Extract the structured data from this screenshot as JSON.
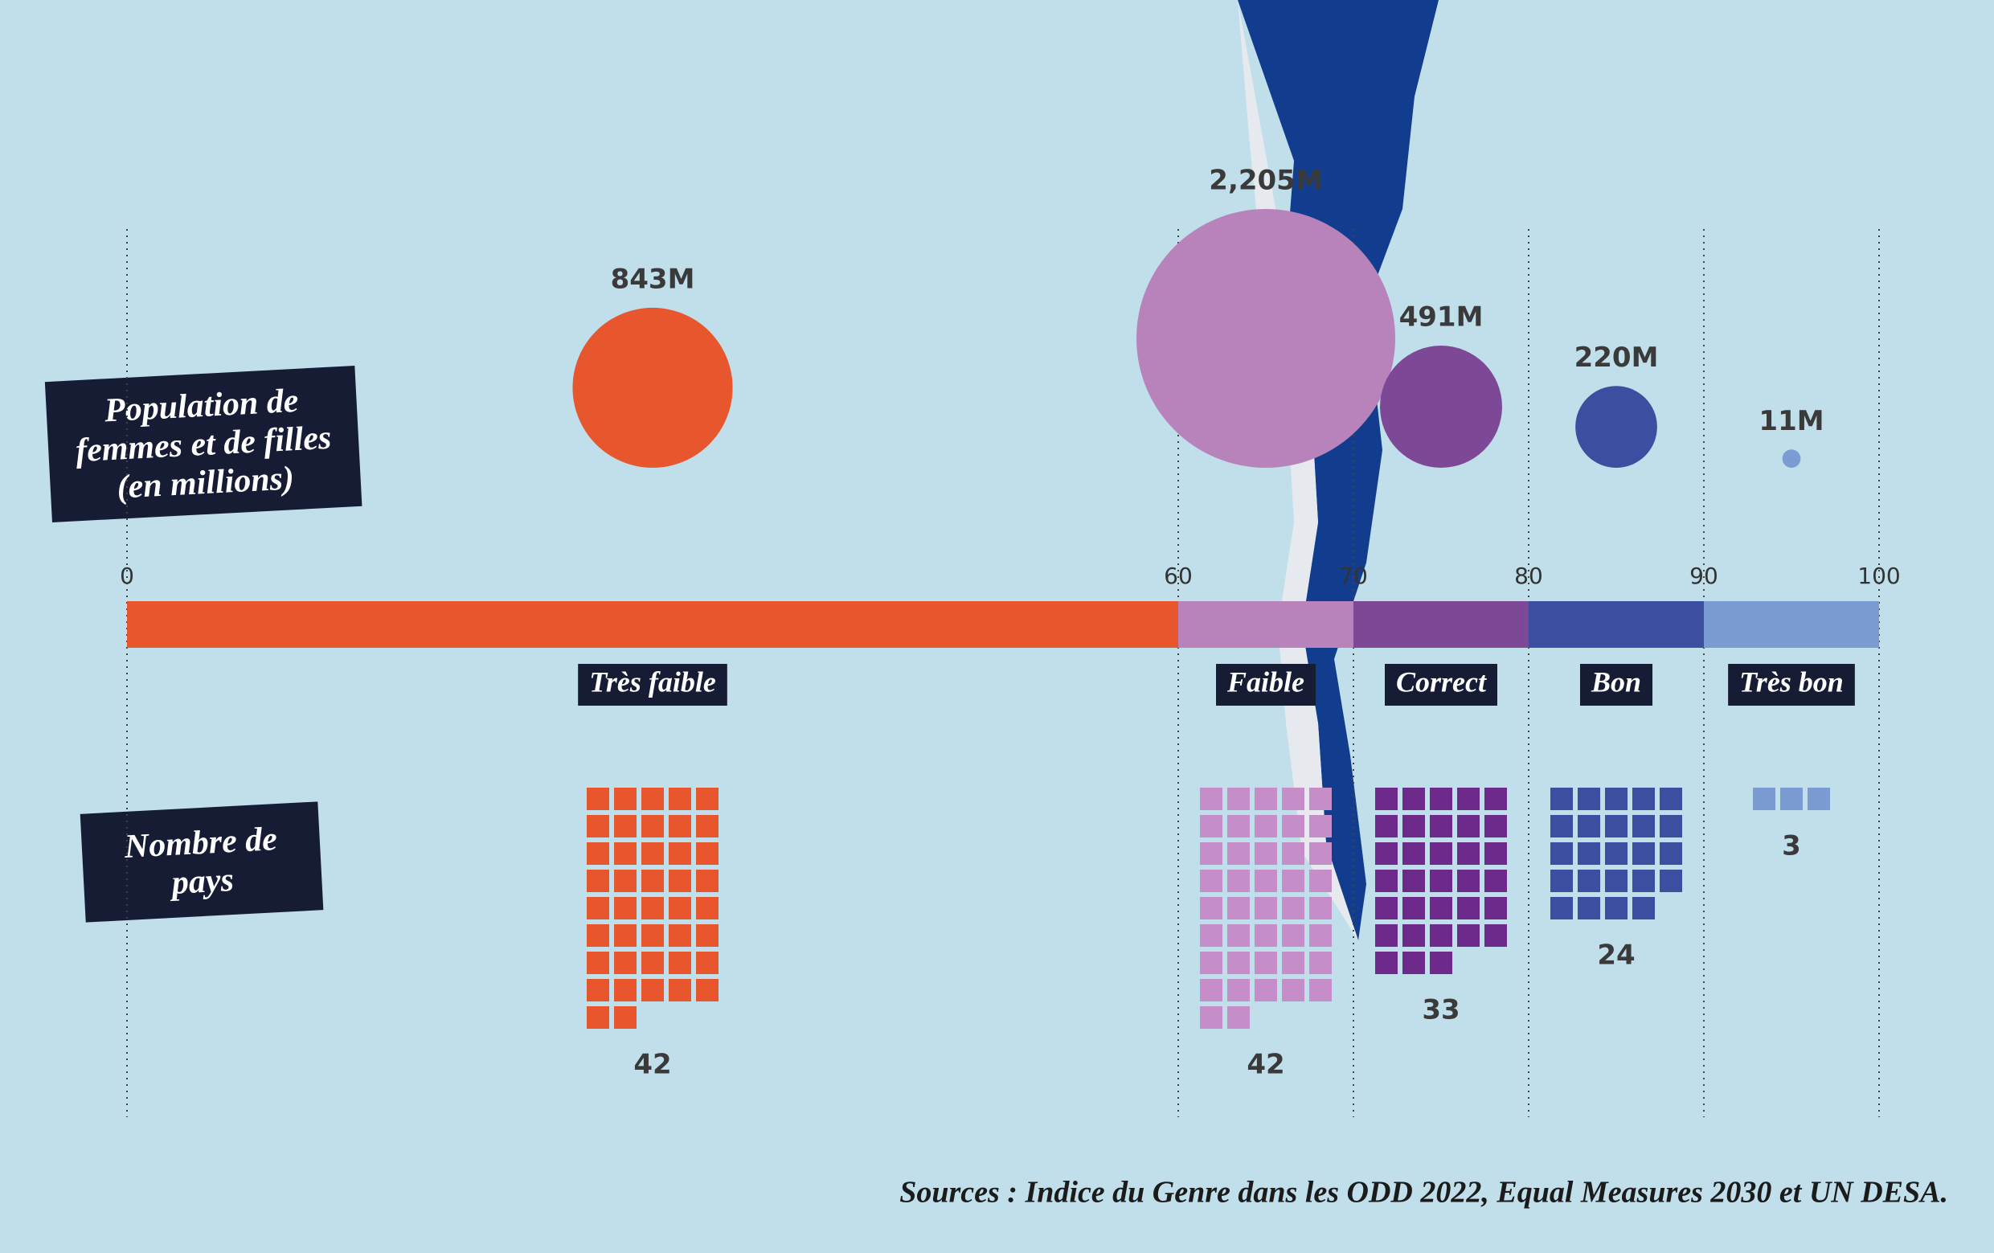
{
  "chart_data": {
    "type": "bubble",
    "categories": [
      "Très faible",
      "Faible",
      "Correct",
      "Bon",
      "Très bon"
    ],
    "colors": [
      "#e8562e",
      "#b882bb",
      "#7d4996",
      "#3c4e9f",
      "#7b9bd3"
    ],
    "xlim": [
      0,
      100
    ],
    "xticks": [
      0,
      60,
      70,
      80,
      90,
      100
    ],
    "population": {
      "label": "Population de femmes et de filles (en millions)",
      "values": [
        843,
        2205,
        491,
        220,
        11
      ],
      "value_labels": [
        "843M",
        "2,205M",
        "491M",
        "220M",
        "11M"
      ]
    },
    "countries": {
      "label": "Nombre de pays",
      "values": [
        42,
        42,
        33,
        24,
        3
      ],
      "colors": [
        "#e8562e",
        "#c68ec8",
        "#6d2a8b",
        "#3c4e9f",
        "#7b9bd3"
      ]
    },
    "source": "Sources : Indice du Genre dans les ODD 2022, Equal Measures 2030 et UN DESA."
  }
}
